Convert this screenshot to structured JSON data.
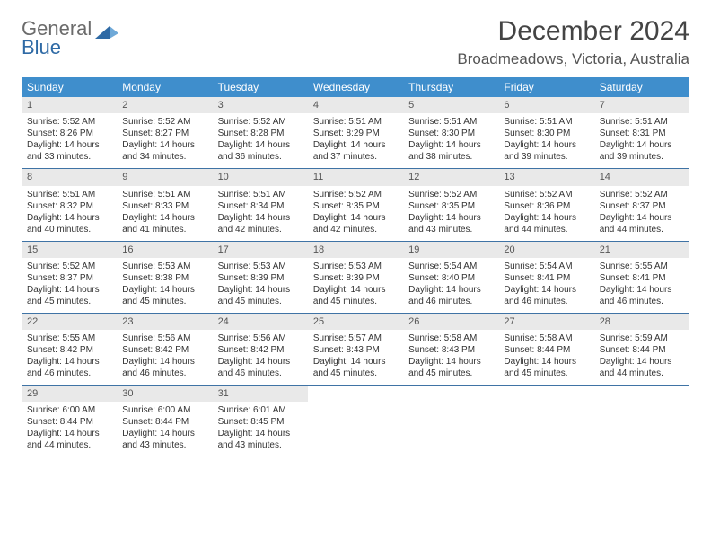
{
  "logo": {
    "word1": "General",
    "word2": "Blue"
  },
  "title": "December 2024",
  "location": "Broadmeadows, Victoria, Australia",
  "colors": {
    "header_bg": "#3f8ecc",
    "header_text": "#ffffff",
    "daynum_bg": "#e9e9e9",
    "row_divider": "#3f73a5",
    "logo_gray": "#6b6b6b",
    "logo_blue": "#2f6aa5",
    "title_color": "#444444",
    "location_color": "#555555",
    "body_text": "#333333"
  },
  "weekdays": [
    "Sunday",
    "Monday",
    "Tuesday",
    "Wednesday",
    "Thursday",
    "Friday",
    "Saturday"
  ],
  "weeks": [
    [
      {
        "n": "1",
        "sr": "5:52 AM",
        "ss": "8:26 PM",
        "dl": "14 hours and 33 minutes."
      },
      {
        "n": "2",
        "sr": "5:52 AM",
        "ss": "8:27 PM",
        "dl": "14 hours and 34 minutes."
      },
      {
        "n": "3",
        "sr": "5:52 AM",
        "ss": "8:28 PM",
        "dl": "14 hours and 36 minutes."
      },
      {
        "n": "4",
        "sr": "5:51 AM",
        "ss": "8:29 PM",
        "dl": "14 hours and 37 minutes."
      },
      {
        "n": "5",
        "sr": "5:51 AM",
        "ss": "8:30 PM",
        "dl": "14 hours and 38 minutes."
      },
      {
        "n": "6",
        "sr": "5:51 AM",
        "ss": "8:30 PM",
        "dl": "14 hours and 39 minutes."
      },
      {
        "n": "7",
        "sr": "5:51 AM",
        "ss": "8:31 PM",
        "dl": "14 hours and 39 minutes."
      }
    ],
    [
      {
        "n": "8",
        "sr": "5:51 AM",
        "ss": "8:32 PM",
        "dl": "14 hours and 40 minutes."
      },
      {
        "n": "9",
        "sr": "5:51 AM",
        "ss": "8:33 PM",
        "dl": "14 hours and 41 minutes."
      },
      {
        "n": "10",
        "sr": "5:51 AM",
        "ss": "8:34 PM",
        "dl": "14 hours and 42 minutes."
      },
      {
        "n": "11",
        "sr": "5:52 AM",
        "ss": "8:35 PM",
        "dl": "14 hours and 42 minutes."
      },
      {
        "n": "12",
        "sr": "5:52 AM",
        "ss": "8:35 PM",
        "dl": "14 hours and 43 minutes."
      },
      {
        "n": "13",
        "sr": "5:52 AM",
        "ss": "8:36 PM",
        "dl": "14 hours and 44 minutes."
      },
      {
        "n": "14",
        "sr": "5:52 AM",
        "ss": "8:37 PM",
        "dl": "14 hours and 44 minutes."
      }
    ],
    [
      {
        "n": "15",
        "sr": "5:52 AM",
        "ss": "8:37 PM",
        "dl": "14 hours and 45 minutes."
      },
      {
        "n": "16",
        "sr": "5:53 AM",
        "ss": "8:38 PM",
        "dl": "14 hours and 45 minutes."
      },
      {
        "n": "17",
        "sr": "5:53 AM",
        "ss": "8:39 PM",
        "dl": "14 hours and 45 minutes."
      },
      {
        "n": "18",
        "sr": "5:53 AM",
        "ss": "8:39 PM",
        "dl": "14 hours and 45 minutes."
      },
      {
        "n": "19",
        "sr": "5:54 AM",
        "ss": "8:40 PM",
        "dl": "14 hours and 46 minutes."
      },
      {
        "n": "20",
        "sr": "5:54 AM",
        "ss": "8:41 PM",
        "dl": "14 hours and 46 minutes."
      },
      {
        "n": "21",
        "sr": "5:55 AM",
        "ss": "8:41 PM",
        "dl": "14 hours and 46 minutes."
      }
    ],
    [
      {
        "n": "22",
        "sr": "5:55 AM",
        "ss": "8:42 PM",
        "dl": "14 hours and 46 minutes."
      },
      {
        "n": "23",
        "sr": "5:56 AM",
        "ss": "8:42 PM",
        "dl": "14 hours and 46 minutes."
      },
      {
        "n": "24",
        "sr": "5:56 AM",
        "ss": "8:42 PM",
        "dl": "14 hours and 46 minutes."
      },
      {
        "n": "25",
        "sr": "5:57 AM",
        "ss": "8:43 PM",
        "dl": "14 hours and 45 minutes."
      },
      {
        "n": "26",
        "sr": "5:58 AM",
        "ss": "8:43 PM",
        "dl": "14 hours and 45 minutes."
      },
      {
        "n": "27",
        "sr": "5:58 AM",
        "ss": "8:44 PM",
        "dl": "14 hours and 45 minutes."
      },
      {
        "n": "28",
        "sr": "5:59 AM",
        "ss": "8:44 PM",
        "dl": "14 hours and 44 minutes."
      }
    ],
    [
      {
        "n": "29",
        "sr": "6:00 AM",
        "ss": "8:44 PM",
        "dl": "14 hours and 44 minutes."
      },
      {
        "n": "30",
        "sr": "6:00 AM",
        "ss": "8:44 PM",
        "dl": "14 hours and 43 minutes."
      },
      {
        "n": "31",
        "sr": "6:01 AM",
        "ss": "8:45 PM",
        "dl": "14 hours and 43 minutes."
      },
      null,
      null,
      null,
      null
    ]
  ],
  "labels": {
    "sunrise": "Sunrise: ",
    "sunset": "Sunset: ",
    "daylight": "Daylight: "
  }
}
